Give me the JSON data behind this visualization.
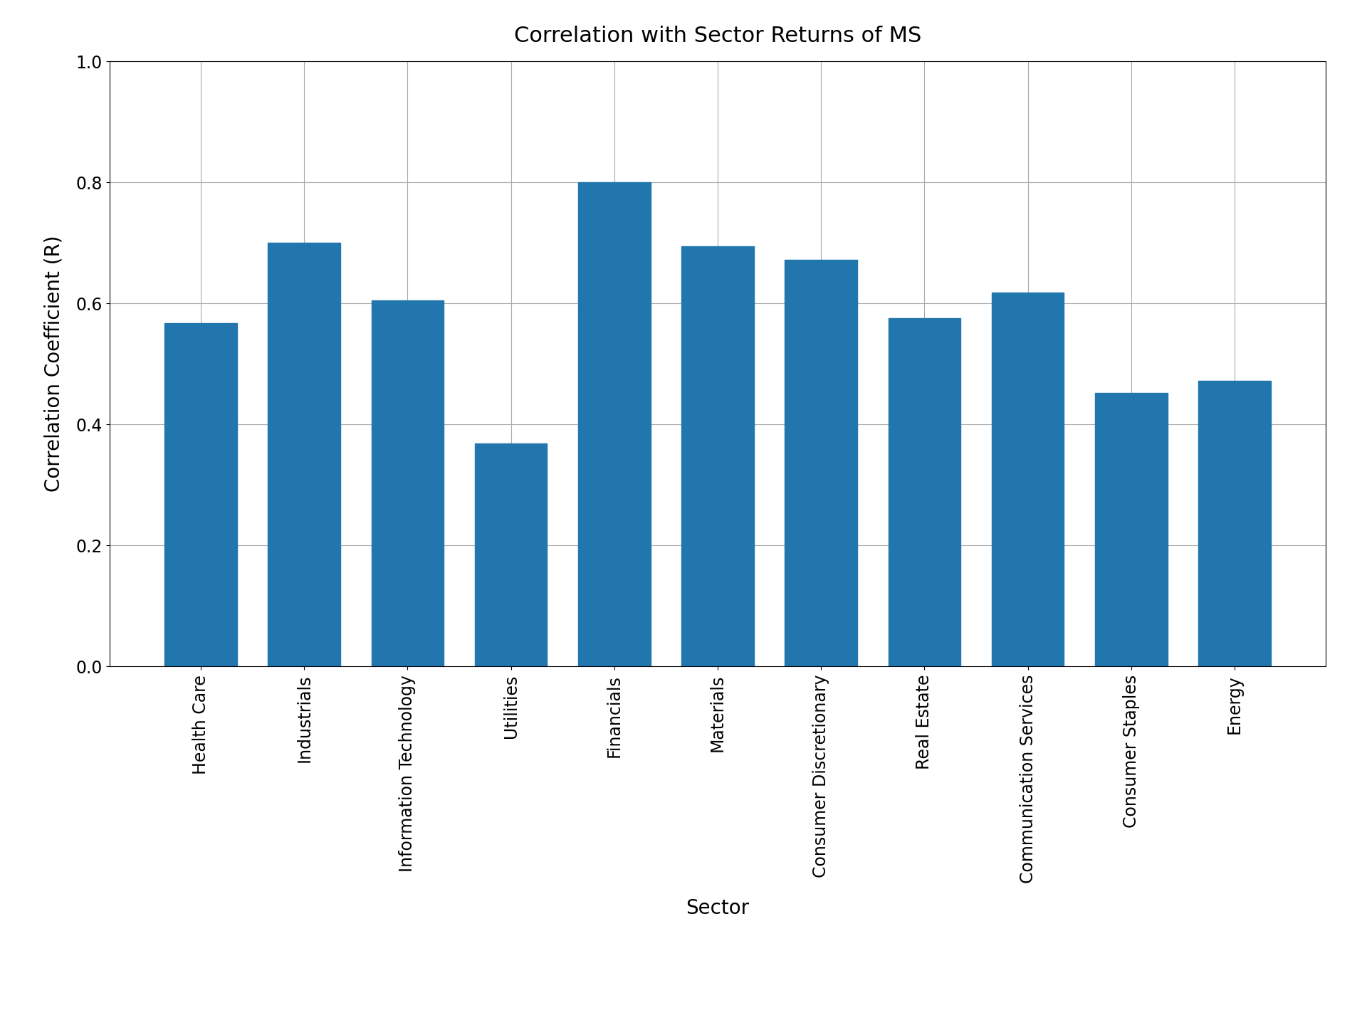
{
  "title": "Correlation with Sector Returns of MS",
  "xlabel": "Sector",
  "ylabel": "Correlation Coefficient (R)",
  "categories": [
    "Health Care",
    "Industrials",
    "Information Technology",
    "Utilities",
    "Financials",
    "Materials",
    "Consumer Discretionary",
    "Real Estate",
    "Communication Services",
    "Consumer Staples",
    "Energy"
  ],
  "values": [
    0.567,
    0.7,
    0.605,
    0.368,
    0.8,
    0.695,
    0.672,
    0.575,
    0.618,
    0.452,
    0.472
  ],
  "bar_color": "#2176ae",
  "ylim": [
    0.0,
    1.0
  ],
  "yticks": [
    0.0,
    0.2,
    0.4,
    0.6,
    0.8,
    1.0
  ],
  "title_fontsize": 22,
  "label_fontsize": 20,
  "tick_fontsize": 17,
  "figsize": [
    19.2,
    14.4
  ],
  "dpi": 100,
  "bar_width": 0.7,
  "grid_color": "#aaaaaa",
  "grid_linewidth": 0.8
}
